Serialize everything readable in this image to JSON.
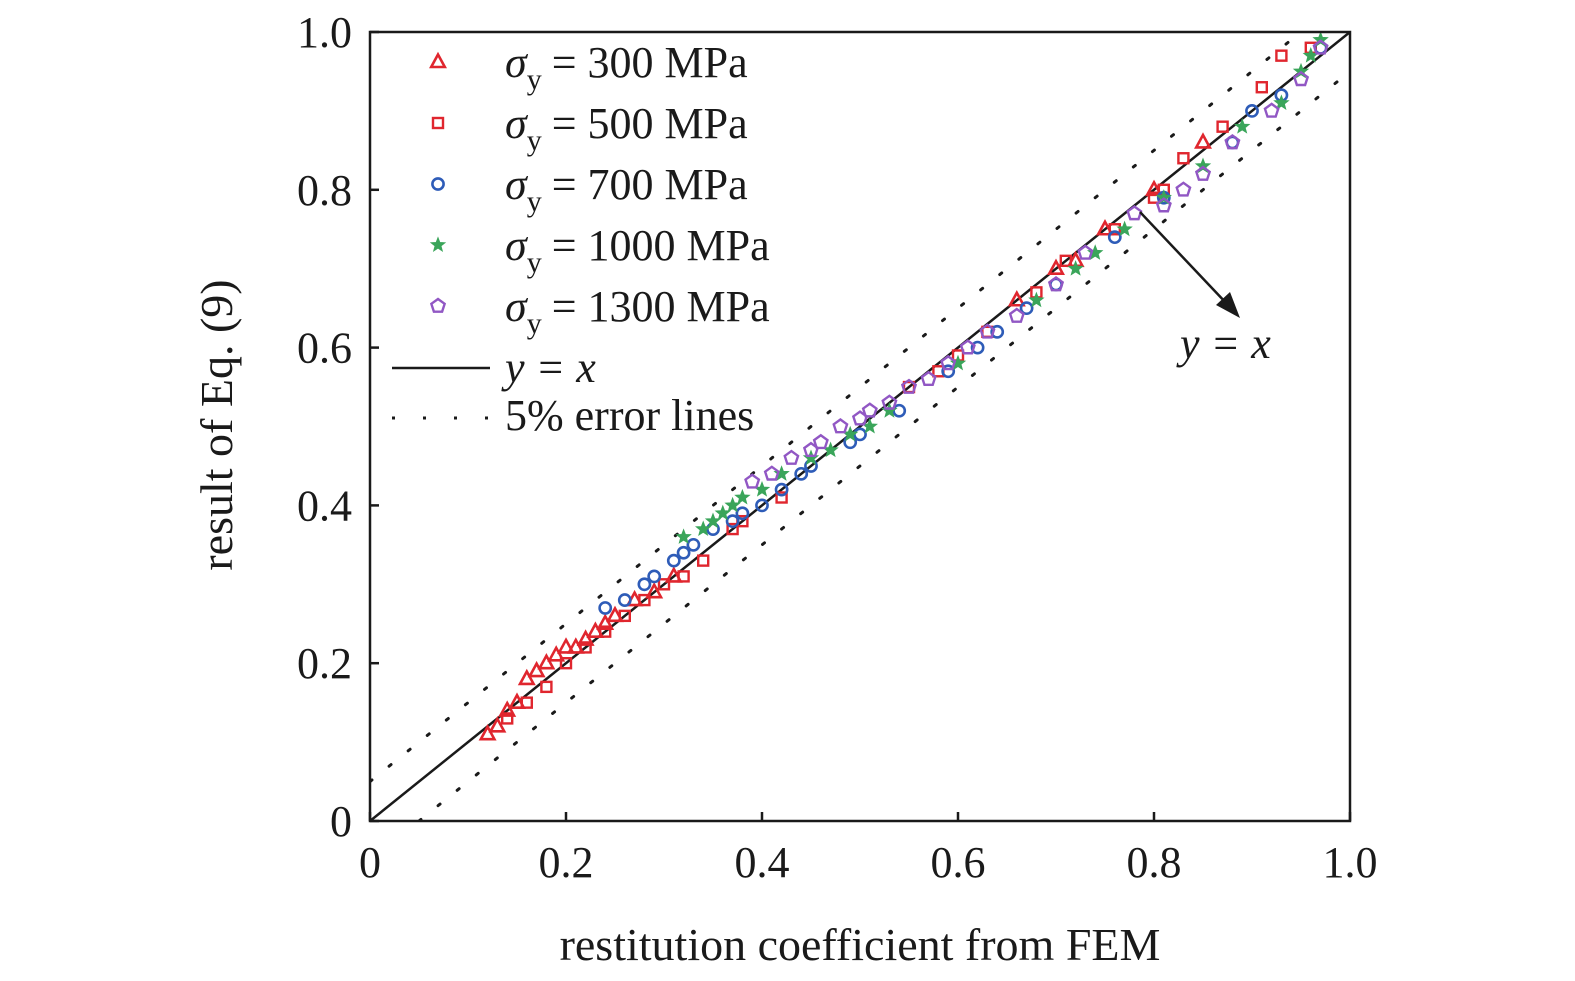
{
  "chart_data": {
    "type": "scatter",
    "xlabel": "restitution coefficient from FEM",
    "ylabel": "result of Eq. (9)",
    "xlim": [
      0,
      1.0
    ],
    "ylim": [
      0,
      1.0
    ],
    "x_tick_labels": [
      "0",
      "0.2",
      "0.4",
      "0.6",
      "0.8",
      "1.0"
    ],
    "y_tick_labels": [
      "0",
      "0.2",
      "0.4",
      "0.6",
      "0.8",
      "1.0"
    ],
    "x_ticks": [
      0,
      0.2,
      0.4,
      0.6,
      0.8,
      1.0
    ],
    "y_ticks": [
      0,
      0.2,
      0.4,
      0.6,
      0.8,
      1.0
    ],
    "grid": false,
    "legend_position": "top-left",
    "series": [
      {
        "name": "σy = 300 MPa",
        "legend_symbol": "σ",
        "legend_subscript": "y",
        "legend_value": "= 300 MPa",
        "marker": "triangle",
        "color": "#e0262e",
        "points": [
          [
            0.12,
            0.11
          ],
          [
            0.13,
            0.12
          ],
          [
            0.14,
            0.14
          ],
          [
            0.15,
            0.15
          ],
          [
            0.16,
            0.18
          ],
          [
            0.17,
            0.19
          ],
          [
            0.18,
            0.2
          ],
          [
            0.19,
            0.21
          ],
          [
            0.2,
            0.22
          ],
          [
            0.21,
            0.22
          ],
          [
            0.22,
            0.23
          ],
          [
            0.23,
            0.24
          ],
          [
            0.24,
            0.25
          ],
          [
            0.25,
            0.26
          ],
          [
            0.27,
            0.28
          ],
          [
            0.29,
            0.29
          ],
          [
            0.31,
            0.31
          ],
          [
            0.66,
            0.66
          ],
          [
            0.7,
            0.7
          ],
          [
            0.72,
            0.71
          ],
          [
            0.75,
            0.75
          ],
          [
            0.8,
            0.8
          ],
          [
            0.85,
            0.86
          ]
        ]
      },
      {
        "name": "σy = 500 MPa",
        "legend_symbol": "σ",
        "legend_subscript": "y",
        "legend_value": "= 500 MPa",
        "marker": "square",
        "color": "#e0262e",
        "points": [
          [
            0.14,
            0.13
          ],
          [
            0.16,
            0.15
          ],
          [
            0.18,
            0.17
          ],
          [
            0.2,
            0.2
          ],
          [
            0.22,
            0.22
          ],
          [
            0.24,
            0.24
          ],
          [
            0.26,
            0.26
          ],
          [
            0.28,
            0.28
          ],
          [
            0.3,
            0.3
          ],
          [
            0.32,
            0.31
          ],
          [
            0.34,
            0.33
          ],
          [
            0.37,
            0.37
          ],
          [
            0.38,
            0.38
          ],
          [
            0.42,
            0.41
          ],
          [
            0.55,
            0.55
          ],
          [
            0.58,
            0.57
          ],
          [
            0.6,
            0.59
          ],
          [
            0.63,
            0.62
          ],
          [
            0.68,
            0.67
          ],
          [
            0.71,
            0.71
          ],
          [
            0.76,
            0.75
          ],
          [
            0.8,
            0.79
          ],
          [
            0.81,
            0.8
          ],
          [
            0.83,
            0.84
          ],
          [
            0.87,
            0.88
          ],
          [
            0.91,
            0.93
          ],
          [
            0.93,
            0.97
          ],
          [
            0.96,
            0.98
          ]
        ]
      },
      {
        "name": "σy = 700 MPa",
        "legend_symbol": "σ",
        "legend_subscript": "y",
        "legend_value": "= 700 MPa",
        "marker": "circle",
        "color": "#2e5cb8",
        "points": [
          [
            0.24,
            0.27
          ],
          [
            0.26,
            0.28
          ],
          [
            0.28,
            0.3
          ],
          [
            0.29,
            0.31
          ],
          [
            0.31,
            0.33
          ],
          [
            0.32,
            0.34
          ],
          [
            0.33,
            0.35
          ],
          [
            0.35,
            0.37
          ],
          [
            0.37,
            0.38
          ],
          [
            0.38,
            0.39
          ],
          [
            0.4,
            0.4
          ],
          [
            0.42,
            0.42
          ],
          [
            0.44,
            0.44
          ],
          [
            0.45,
            0.45
          ],
          [
            0.49,
            0.48
          ],
          [
            0.5,
            0.49
          ],
          [
            0.54,
            0.52
          ],
          [
            0.59,
            0.57
          ],
          [
            0.62,
            0.6
          ],
          [
            0.64,
            0.62
          ],
          [
            0.67,
            0.65
          ],
          [
            0.7,
            0.68
          ],
          [
            0.76,
            0.74
          ],
          [
            0.81,
            0.79
          ],
          [
            0.88,
            0.86
          ],
          [
            0.9,
            0.9
          ],
          [
            0.93,
            0.92
          ],
          [
            0.97,
            0.98
          ]
        ]
      },
      {
        "name": "σy = 1000 MPa",
        "legend_symbol": "σ",
        "legend_subscript": "y",
        "legend_value": "= 1000 MPa",
        "marker": "star",
        "color": "#3aa55a",
        "points": [
          [
            0.32,
            0.36
          ],
          [
            0.34,
            0.37
          ],
          [
            0.35,
            0.38
          ],
          [
            0.36,
            0.39
          ],
          [
            0.37,
            0.4
          ],
          [
            0.38,
            0.41
          ],
          [
            0.4,
            0.42
          ],
          [
            0.42,
            0.44
          ],
          [
            0.45,
            0.46
          ],
          [
            0.47,
            0.47
          ],
          [
            0.49,
            0.49
          ],
          [
            0.51,
            0.5
          ],
          [
            0.53,
            0.52
          ],
          [
            0.6,
            0.58
          ],
          [
            0.68,
            0.66
          ],
          [
            0.72,
            0.7
          ],
          [
            0.74,
            0.72
          ],
          [
            0.77,
            0.75
          ],
          [
            0.81,
            0.79
          ],
          [
            0.85,
            0.83
          ],
          [
            0.89,
            0.88
          ],
          [
            0.93,
            0.91
          ],
          [
            0.95,
            0.95
          ],
          [
            0.96,
            0.97
          ],
          [
            0.97,
            0.99
          ]
        ]
      },
      {
        "name": "σy = 1300 MPa",
        "legend_symbol": "σ",
        "legend_subscript": "y",
        "legend_value": "= 1300 MPa",
        "marker": "pentagon",
        "color": "#9157c4",
        "points": [
          [
            0.39,
            0.43
          ],
          [
            0.41,
            0.44
          ],
          [
            0.43,
            0.46
          ],
          [
            0.45,
            0.47
          ],
          [
            0.46,
            0.48
          ],
          [
            0.48,
            0.5
          ],
          [
            0.5,
            0.51
          ],
          [
            0.51,
            0.52
          ],
          [
            0.53,
            0.53
          ],
          [
            0.55,
            0.55
          ],
          [
            0.57,
            0.56
          ],
          [
            0.59,
            0.58
          ],
          [
            0.61,
            0.6
          ],
          [
            0.63,
            0.62
          ],
          [
            0.66,
            0.64
          ],
          [
            0.7,
            0.68
          ],
          [
            0.73,
            0.72
          ],
          [
            0.78,
            0.77
          ],
          [
            0.81,
            0.78
          ],
          [
            0.83,
            0.8
          ],
          [
            0.85,
            0.82
          ],
          [
            0.88,
            0.86
          ],
          [
            0.92,
            0.9
          ],
          [
            0.95,
            0.94
          ],
          [
            0.97,
            0.98
          ]
        ]
      }
    ],
    "reference_lines": [
      {
        "name": "y = x",
        "legend_label": "y = x",
        "style": "solid",
        "color": "#1a1a1a",
        "points": [
          [
            0,
            0
          ],
          [
            1.0,
            1.0
          ]
        ]
      },
      {
        "name": "5% error lines",
        "legend_label": "5% error lines",
        "style": "dotted",
        "color": "#1a1a1a",
        "upper": [
          [
            0,
            0.05
          ],
          [
            0.95,
            1.0
          ]
        ],
        "lower": [
          [
            0.05,
            0
          ],
          [
            1.0,
            0.95
          ]
        ]
      }
    ],
    "annotation": {
      "text": "y = x",
      "point_x": 0.78,
      "point_y": 0.78
    }
  }
}
